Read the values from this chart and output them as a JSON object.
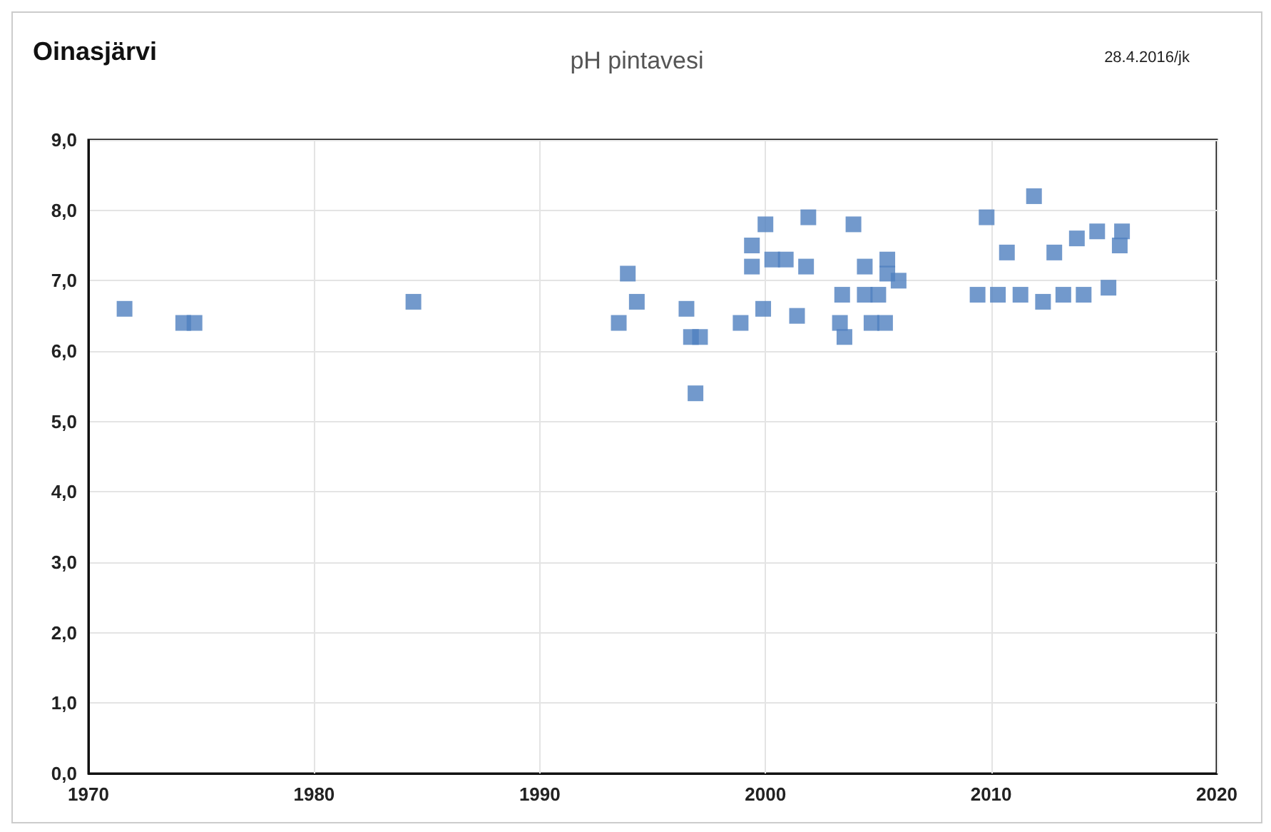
{
  "chart_data": {
    "type": "scatter",
    "title": "pH pintavesi",
    "annotations": [
      "Oinasjärvi",
      "28.4.2016/jk"
    ],
    "x": [
      1971.6,
      1974.2,
      1974.7,
      1984.4,
      1993.5,
      1993.9,
      1994.3,
      1996.5,
      1996.7,
      1997.1,
      1996.9,
      1998.9,
      1999.4,
      1999.4,
      2000.0,
      1999.9,
      2000.3,
      2000.9,
      2001.4,
      2001.9,
      2001.8,
      2003.3,
      2003.4,
      2003.5,
      2003.9,
      2004.4,
      2004.4,
      2005.0,
      2004.7,
      2005.3,
      2005.4,
      2005.4,
      2005.9,
      2009.4,
      2009.8,
      2010.3,
      2010.7,
      2011.3,
      2011.9,
      2012.3,
      2012.8,
      2013.2,
      2013.8,
      2014.1,
      2014.7,
      2015.2,
      2015.8,
      2015.7
    ],
    "values": [
      6.6,
      6.4,
      6.4,
      6.7,
      6.4,
      7.1,
      6.7,
      6.6,
      6.2,
      6.2,
      5.4,
      6.4,
      7.5,
      7.2,
      7.8,
      6.6,
      7.3,
      7.3,
      6.5,
      7.9,
      7.2,
      6.4,
      6.8,
      6.2,
      7.8,
      7.2,
      6.8,
      6.8,
      6.4,
      6.4,
      7.3,
      7.1,
      7.0,
      6.8,
      7.9,
      6.8,
      7.4,
      6.8,
      8.2,
      6.7,
      7.4,
      6.8,
      7.6,
      6.8,
      7.7,
      6.9,
      7.7,
      7.5
    ],
    "color": "#4f7fbf",
    "marker": "square",
    "grid": true,
    "xlim": [
      1970,
      2020
    ],
    "xticks": [
      1970,
      1980,
      1990,
      2000,
      2010,
      2020
    ],
    "ylim": [
      0,
      9
    ],
    "yticks": [
      {
        "value": 0,
        "label": "0,0"
      },
      {
        "value": 1,
        "label": "1,0"
      },
      {
        "value": 2,
        "label": "2,0"
      },
      {
        "value": 3,
        "label": "3,0"
      },
      {
        "value": 4,
        "label": "4,0"
      },
      {
        "value": 5,
        "label": "5,0"
      },
      {
        "value": 6,
        "label": "6,0"
      },
      {
        "value": 7,
        "label": "7,0"
      },
      {
        "value": 8,
        "label": "8,0"
      },
      {
        "value": 9,
        "label": "9,0"
      }
    ]
  }
}
